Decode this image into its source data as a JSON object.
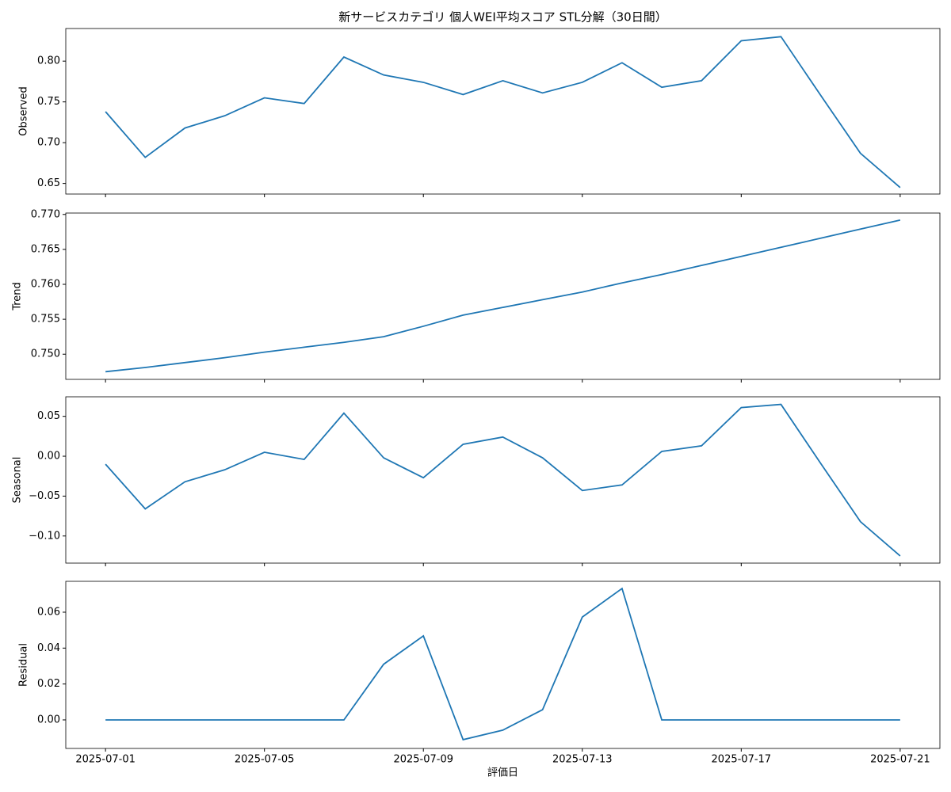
{
  "chart_data": [
    {
      "type": "line",
      "title": "新サービスカテゴリ 個人WEI平均スコア STL分解（30日間）",
      "y_label": "Observed",
      "color": "#1f77b4",
      "x": [
        "2025-07-01",
        "2025-07-02",
        "2025-07-03",
        "2025-07-04",
        "2025-07-05",
        "2025-07-06",
        "2025-07-07",
        "2025-07-08",
        "2025-07-09",
        "2025-07-10",
        "2025-07-11",
        "2025-07-12",
        "2025-07-13",
        "2025-07-14",
        "2025-07-15",
        "2025-07-16",
        "2025-07-17",
        "2025-07-18",
        "2025-07-19",
        "2025-07-20",
        "2025-07-21"
      ],
      "values": [
        0.738,
        0.682,
        0.718,
        0.733,
        0.755,
        0.748,
        0.805,
        0.783,
        0.774,
        0.759,
        0.776,
        0.761,
        0.774,
        0.798,
        0.768,
        0.776,
        0.825,
        0.83,
        0.758,
        0.687,
        0.645
      ],
      "ylim": [
        0.637,
        0.84
      ],
      "yticks": [
        {
          "value": 0.65,
          "label": "0.65"
        },
        {
          "value": 0.7,
          "label": "0.70"
        },
        {
          "value": 0.75,
          "label": "0.75"
        },
        {
          "value": 0.8,
          "label": "0.80"
        }
      ]
    },
    {
      "type": "line",
      "y_label": "Trend",
      "color": "#1f77b4",
      "x": [
        "2025-07-01",
        "2025-07-02",
        "2025-07-03",
        "2025-07-04",
        "2025-07-05",
        "2025-07-06",
        "2025-07-07",
        "2025-07-08",
        "2025-07-09",
        "2025-07-10",
        "2025-07-11",
        "2025-07-12",
        "2025-07-13",
        "2025-07-14",
        "2025-07-15",
        "2025-07-16",
        "2025-07-17",
        "2025-07-18",
        "2025-07-19",
        "2025-07-20",
        "2025-07-21"
      ],
      "values": [
        0.7475,
        0.7481,
        0.7488,
        0.7495,
        0.7503,
        0.751,
        0.7517,
        0.7525,
        0.754,
        0.7556,
        0.7567,
        0.7578,
        0.7589,
        0.7602,
        0.7614,
        0.7627,
        0.764,
        0.7653,
        0.7666,
        0.7679,
        0.7692
      ],
      "ylim": [
        0.7464,
        0.7702
      ],
      "yticks": [
        {
          "value": 0.75,
          "label": "0.750"
        },
        {
          "value": 0.755,
          "label": "0.755"
        },
        {
          "value": 0.76,
          "label": "0.760"
        },
        {
          "value": 0.765,
          "label": "0.765"
        },
        {
          "value": 0.77,
          "label": "0.770"
        }
      ]
    },
    {
      "type": "line",
      "y_label": "Seasonal",
      "color": "#1f77b4",
      "x": [
        "2025-07-01",
        "2025-07-02",
        "2025-07-03",
        "2025-07-04",
        "2025-07-05",
        "2025-07-06",
        "2025-07-07",
        "2025-07-08",
        "2025-07-09",
        "2025-07-10",
        "2025-07-11",
        "2025-07-12",
        "2025-07-13",
        "2025-07-14",
        "2025-07-15",
        "2025-07-16",
        "2025-07-17",
        "2025-07-18",
        "2025-07-19",
        "2025-07-20",
        "2025-07-21"
      ],
      "values": [
        -0.01,
        -0.066,
        -0.032,
        -0.017,
        0.005,
        -0.004,
        0.054,
        -0.002,
        -0.027,
        0.015,
        0.024,
        -0.002,
        -0.043,
        -0.036,
        0.006,
        0.013,
        0.061,
        0.065,
        -0.009,
        -0.082,
        -0.125
      ],
      "ylim": [
        -0.134,
        0.0745
      ],
      "yticks": [
        {
          "value": -0.1,
          "label": "−0.10"
        },
        {
          "value": -0.05,
          "label": "−0.05"
        },
        {
          "value": 0,
          "label": "0.00"
        },
        {
          "value": 0.05,
          "label": "0.05"
        }
      ]
    },
    {
      "type": "line",
      "y_label": "Residual",
      "x_label": "評価日",
      "color": "#1f77b4",
      "x": [
        "2025-07-01",
        "2025-07-02",
        "2025-07-03",
        "2025-07-04",
        "2025-07-05",
        "2025-07-06",
        "2025-07-07",
        "2025-07-08",
        "2025-07-09",
        "2025-07-10",
        "2025-07-11",
        "2025-07-12",
        "2025-07-13",
        "2025-07-14",
        "2025-07-15",
        "2025-07-16",
        "2025-07-17",
        "2025-07-18",
        "2025-07-19",
        "2025-07-20",
        "2025-07-21"
      ],
      "values": [
        0,
        0,
        0,
        0,
        0,
        0,
        0,
        0.031,
        0.0468,
        -0.011,
        -0.0057,
        0.0057,
        0.0573,
        0.0732,
        0,
        0,
        0,
        0,
        0,
        0,
        0
      ],
      "ylim": [
        -0.0159,
        0.0772
      ],
      "yticks": [
        {
          "value": 0,
          "label": "0.00"
        },
        {
          "value": 0.02,
          "label": "0.02"
        },
        {
          "value": 0.04,
          "label": "0.04"
        },
        {
          "value": 0.06,
          "label": "0.06"
        }
      ],
      "xticks": [
        "2025-07-01",
        "2025-07-05",
        "2025-07-09",
        "2025-07-13",
        "2025-07-17",
        "2025-07-21"
      ]
    }
  ]
}
